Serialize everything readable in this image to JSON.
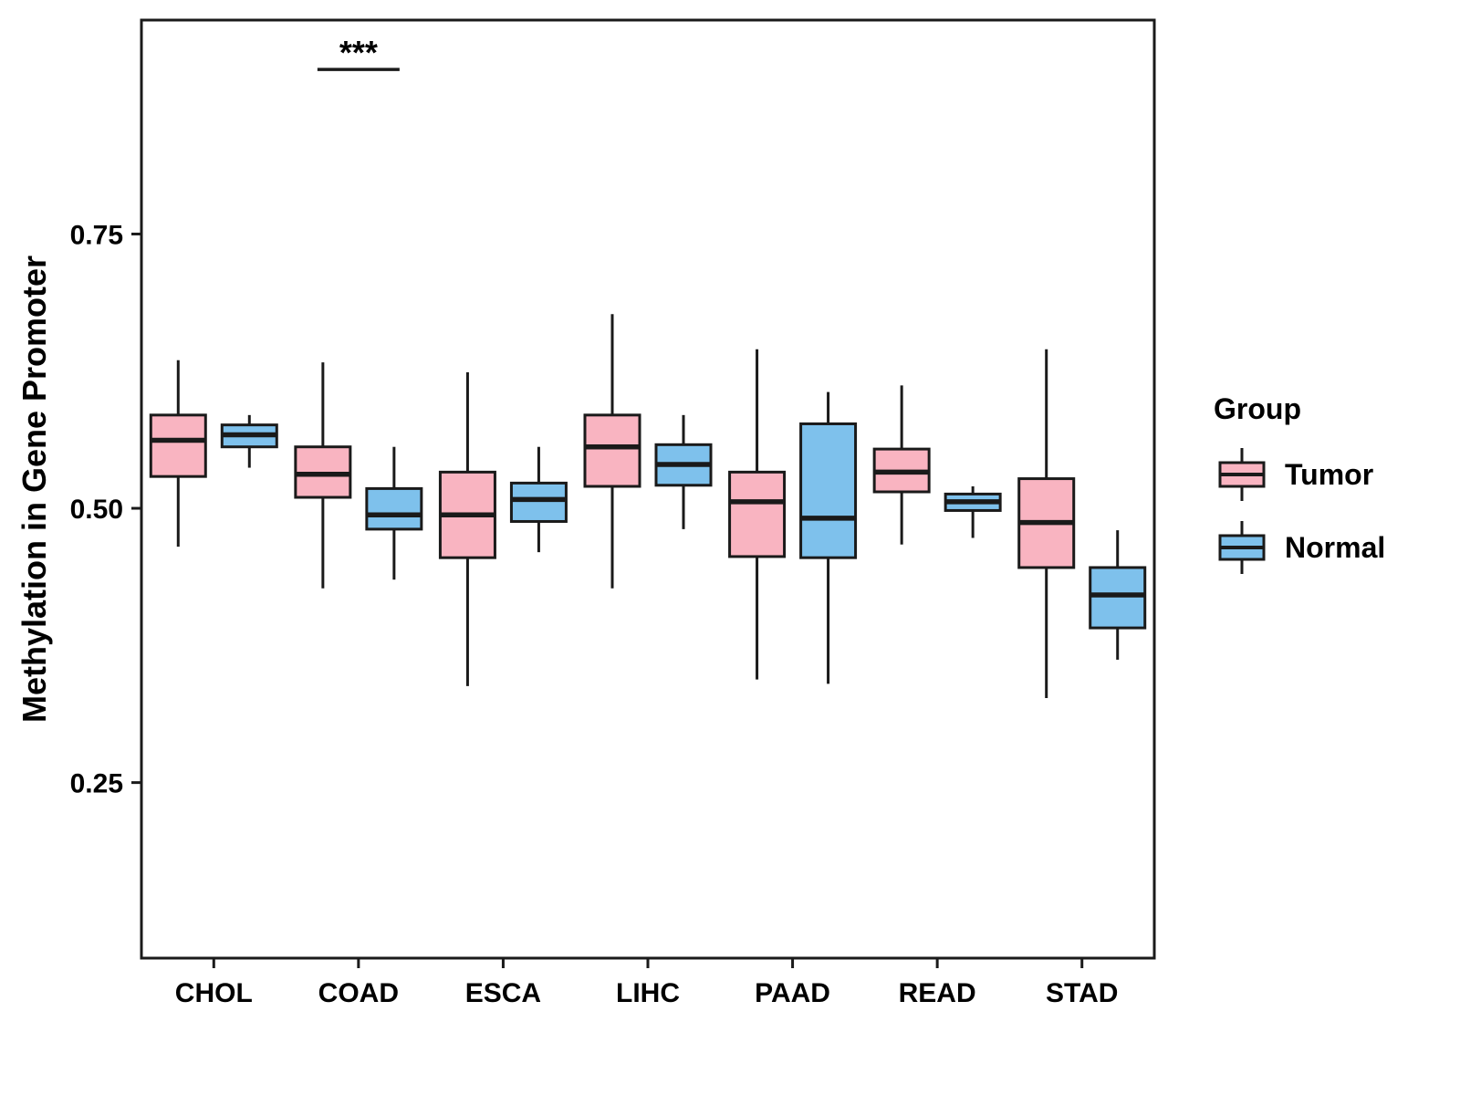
{
  "chart_data": {
    "type": "boxplot",
    "title": "",
    "xlabel": "",
    "ylabel": "Methylation in Gene Promoter",
    "categories": [
      "CHOL",
      "COAD",
      "ESCA",
      "LIHC",
      "PAAD",
      "READ",
      "STAD"
    ],
    "yticks": [
      "0.25",
      "0.50",
      "0.75"
    ],
    "ylim": [
      0.09,
      0.945
    ],
    "grid": "off",
    "legend": {
      "title": "Group",
      "position": "right",
      "entries": [
        {
          "label": "Tumor",
          "color": "#F9B4C1"
        },
        {
          "label": "Normal",
          "color": "#7EC1EC"
        }
      ]
    },
    "stroke_color": "#1a1a1a",
    "series": [
      {
        "name": "Tumor",
        "color": "#F9B4C1",
        "boxes": [
          {
            "category": "CHOL",
            "lo": 0.465,
            "q1": 0.529,
            "med": 0.562,
            "q3": 0.585,
            "hi": 0.635
          },
          {
            "category": "COAD",
            "lo": 0.427,
            "q1": 0.51,
            "med": 0.531,
            "q3": 0.556,
            "hi": 0.633
          },
          {
            "category": "ESCA",
            "lo": 0.338,
            "q1": 0.455,
            "med": 0.494,
            "q3": 0.533,
            "hi": 0.624
          },
          {
            "category": "LIHC",
            "lo": 0.427,
            "q1": 0.52,
            "med": 0.556,
            "q3": 0.585,
            "hi": 0.677
          },
          {
            "category": "PAAD",
            "lo": 0.344,
            "q1": 0.456,
            "med": 0.506,
            "q3": 0.533,
            "hi": 0.645
          },
          {
            "category": "READ",
            "lo": 0.467,
            "q1": 0.515,
            "med": 0.533,
            "q3": 0.554,
            "hi": 0.612
          },
          {
            "category": "STAD",
            "lo": 0.327,
            "q1": 0.446,
            "med": 0.487,
            "q3": 0.527,
            "hi": 0.645
          }
        ]
      },
      {
        "name": "Normal",
        "color": "#7EC1EC",
        "boxes": [
          {
            "category": "CHOL",
            "lo": 0.537,
            "q1": 0.556,
            "med": 0.567,
            "q3": 0.576,
            "hi": 0.585
          },
          {
            "category": "COAD",
            "lo": 0.435,
            "q1": 0.481,
            "med": 0.494,
            "q3": 0.518,
            "hi": 0.556
          },
          {
            "category": "ESCA",
            "lo": 0.46,
            "q1": 0.488,
            "med": 0.508,
            "q3": 0.523,
            "hi": 0.556
          },
          {
            "category": "LIHC",
            "lo": 0.481,
            "q1": 0.521,
            "med": 0.54,
            "q3": 0.558,
            "hi": 0.585
          },
          {
            "category": "PAAD",
            "lo": 0.34,
            "q1": 0.455,
            "med": 0.491,
            "q3": 0.577,
            "hi": 0.606
          },
          {
            "category": "READ",
            "lo": 0.473,
            "q1": 0.498,
            "med": 0.506,
            "q3": 0.513,
            "hi": 0.52
          },
          {
            "category": "STAD",
            "lo": 0.362,
            "q1": 0.391,
            "med": 0.421,
            "q3": 0.446,
            "hi": 0.48
          }
        ]
      }
    ],
    "annotation": {
      "label": "***",
      "category": "COAD",
      "y": 0.9
    }
  }
}
